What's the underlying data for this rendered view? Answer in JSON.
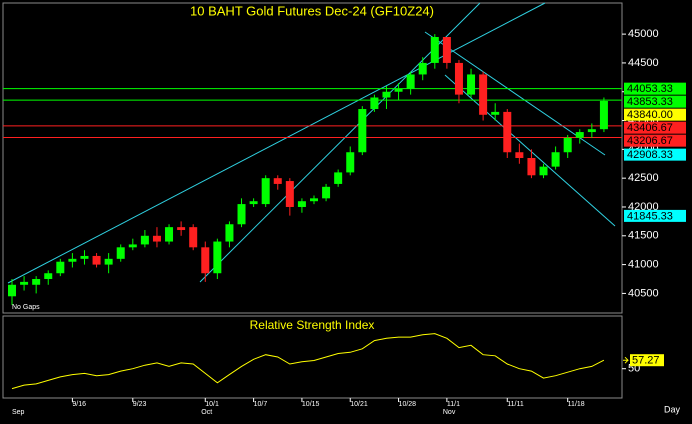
{
  "chart_data": {
    "type": "candlestick",
    "title": "10 BAHT  Gold Futures Dec-24 (GF10Z24)",
    "note": "No Gaps",
    "x_label": "Day",
    "categories": [
      null,
      null,
      null,
      null,
      null,
      "9/16",
      null,
      null,
      null,
      null,
      "9/23",
      null,
      null,
      null,
      null,
      null,
      "10/1",
      null,
      null,
      null,
      "10/7",
      null,
      null,
      null,
      "10/15",
      null,
      null,
      null,
      "10/21",
      null,
      null,
      null,
      "10/28",
      null,
      null,
      null,
      "11/1",
      null,
      null,
      null,
      null,
      "11/11",
      null,
      null,
      null,
      null,
      "11/18",
      null,
      null,
      null
    ],
    "months": [
      "Sep",
      null,
      null,
      null,
      null,
      null,
      null,
      null,
      null,
      null,
      null,
      null,
      null,
      null,
      null,
      null,
      "Oct",
      null,
      null,
      null,
      null,
      null,
      null,
      null,
      null,
      null,
      null,
      null,
      null,
      null,
      null,
      null,
      null,
      null,
      null,
      null,
      "Nov",
      null,
      null,
      null,
      null,
      null,
      null,
      null,
      null,
      null,
      null,
      null,
      null,
      null
    ],
    "open": [
      40450,
      40650,
      40650,
      40750,
      40850,
      41050,
      41100,
      41150,
      41000,
      41100,
      41300,
      41350,
      41500,
      41400,
      41650,
      41650,
      41300,
      40850,
      41400,
      41700,
      42050,
      42050,
      42500,
      42450,
      42000,
      42100,
      42150,
      42400,
      42600,
      42950,
      43700,
      43900,
      44000,
      44050,
      44300,
      44500,
      44950,
      44500,
      43950,
      44300,
      43600,
      43650,
      42950,
      42850,
      42550,
      42700,
      42950,
      43200,
      43300,
      43350
    ],
    "high": [
      40750,
      40800,
      40800,
      40900,
      41100,
      41200,
      41250,
      41200,
      41200,
      41350,
      41450,
      41600,
      41650,
      41700,
      41750,
      41700,
      41400,
      41450,
      41750,
      42150,
      42150,
      42550,
      42550,
      42500,
      42150,
      42200,
      42400,
      42650,
      43050,
      43750,
      43950,
      44100,
      44150,
      44350,
      44600,
      45000,
      44950,
      44550,
      44400,
      44350,
      43800,
      43700,
      43100,
      43000,
      42750,
      43050,
      43250,
      43350,
      43450,
      43900
    ],
    "low": [
      40300,
      40550,
      40500,
      40650,
      40800,
      40950,
      41000,
      40950,
      40850,
      41050,
      41250,
      41300,
      41300,
      41350,
      41500,
      41250,
      40700,
      40750,
      41300,
      41650,
      42000,
      42000,
      42300,
      41850,
      41900,
      42050,
      42100,
      42350,
      42550,
      42900,
      43650,
      43700,
      43850,
      43950,
      44200,
      44400,
      44400,
      43800,
      43900,
      43500,
      43500,
      42850,
      42750,
      42500,
      42500,
      42650,
      42850,
      43100,
      43200,
      43300
    ],
    "close": [
      40650,
      40700,
      40750,
      40850,
      41050,
      41100,
      41150,
      41000,
      41100,
      41300,
      41350,
      41500,
      41400,
      41650,
      41600,
      41300,
      40850,
      41400,
      41700,
      42050,
      42100,
      42500,
      42400,
      42000,
      42100,
      42150,
      42350,
      42600,
      42950,
      43700,
      43900,
      44000,
      44050,
      44300,
      44500,
      44950,
      44500,
      43950,
      44300,
      43600,
      43650,
      42950,
      42850,
      42550,
      42700,
      42950,
      43200,
      43300,
      43350,
      43840
    ],
    "up_color": "#00ff00",
    "down_color": "#ff2020",
    "ylim": [
      40160,
      45540
    ],
    "yticks": [
      40500,
      41000,
      41500,
      42000,
      42500,
      43000,
      43500,
      44000,
      44500,
      45000
    ],
    "levels": [
      {
        "value": 44053.33,
        "color": "#00ff00",
        "line": true
      },
      {
        "value": 43853.33,
        "color": "#00ff00",
        "line": true
      },
      {
        "value": 43840,
        "label": "43840.00",
        "color": "#ffff00",
        "line": false
      },
      {
        "value": 43406.67,
        "color": "#ff2020",
        "line": true
      },
      {
        "value": 43206.67,
        "color": "#ff2020",
        "line": true
      },
      {
        "value": 42908.33,
        "color": "#00ffff",
        "line": false
      },
      {
        "value": 41845.33,
        "color": "#00ffff",
        "line": false
      }
    ],
    "rsi": {
      "type": "line",
      "title": "Relative Strength Index",
      "color": "#ffff00",
      "values": [
        33,
        36,
        37,
        40,
        43,
        45,
        46,
        44,
        45,
        48,
        50,
        53,
        55,
        52,
        55,
        54,
        46,
        38,
        45,
        52,
        58,
        62,
        60,
        54,
        56,
        57,
        60,
        63,
        64,
        67,
        74,
        76,
        77,
        77,
        79,
        80,
        76,
        68,
        70,
        62,
        61,
        54,
        50,
        48,
        42,
        44,
        47,
        50,
        52,
        57.27
      ],
      "ylim": [
        25,
        95
      ],
      "yticks": [
        50
      ]
    }
  }
}
